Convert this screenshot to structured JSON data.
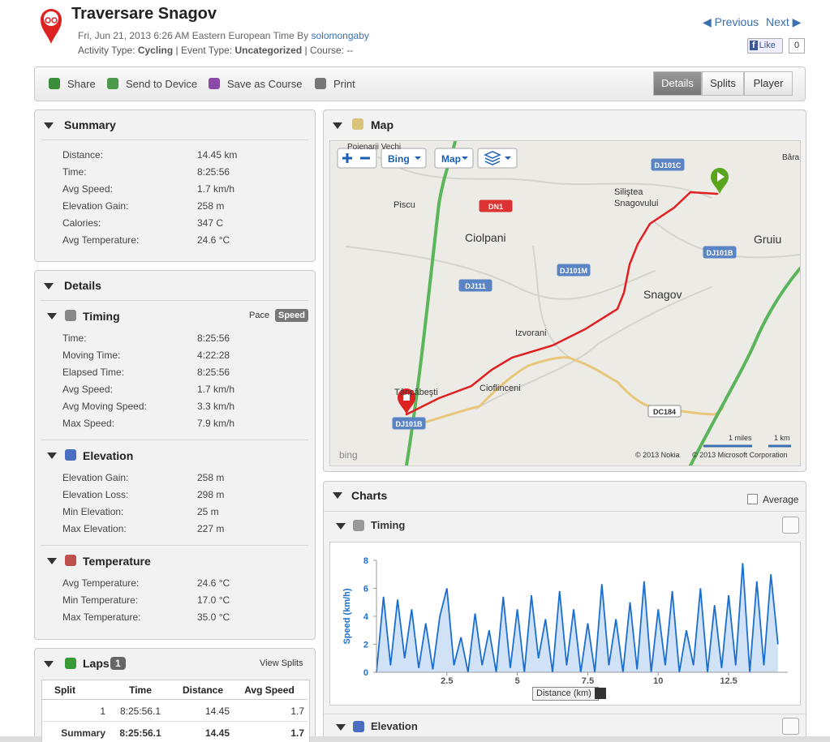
{
  "header": {
    "title": "Traversare Snagov",
    "date": "Fri, Jun 21, 2013 6:26 AM Eastern European Time By",
    "author": "solomongaby",
    "activity_type_label": "Activity Type:",
    "activity_type": "Cycling",
    "event_type_label": "| Event Type:",
    "event_type": "Uncategorized",
    "course_label": "| Course:",
    "course": "--",
    "previous": "Previous",
    "next": "Next",
    "like": "Like",
    "like_count": "0"
  },
  "toolbar": {
    "actions": [
      "Share",
      "Send to Device",
      "Save as Course",
      "Print"
    ],
    "tabs": [
      "Details",
      "Splits",
      "Player"
    ]
  },
  "summary": {
    "title": "Summary",
    "rows": [
      [
        "Distance:",
        "14.45 km"
      ],
      [
        "Time:",
        "8:25:56"
      ],
      [
        "Avg Speed:",
        "1.7 km/h"
      ],
      [
        "Elevation Gain:",
        "258 m"
      ],
      [
        "Calories:",
        "347 C"
      ],
      [
        "Avg Temperature:",
        "24.6 °C"
      ]
    ]
  },
  "details": {
    "title": "Details",
    "sections": [
      {
        "title": "Timing",
        "toggles": [
          "Pace",
          "Speed"
        ],
        "rows": [
          [
            "Time:",
            "8:25:56"
          ],
          [
            "Moving Time:",
            "4:22:28"
          ],
          [
            "Elapsed Time:",
            "8:25:56"
          ],
          [
            "Avg Speed:",
            "1.7 km/h"
          ],
          [
            "Avg Moving Speed:",
            "3.3 km/h"
          ],
          [
            "Max Speed:",
            "7.9 km/h"
          ]
        ]
      },
      {
        "title": "Elevation",
        "rows": [
          [
            "Elevation Gain:",
            "258 m"
          ],
          [
            "Elevation Loss:",
            "298 m"
          ],
          [
            "Min Elevation:",
            "25 m"
          ],
          [
            "Max Elevation:",
            "227 m"
          ]
        ]
      },
      {
        "title": "Temperature",
        "rows": [
          [
            "Avg Temperature:",
            "24.6 °C"
          ],
          [
            "Min Temperature:",
            "17.0 °C"
          ],
          [
            "Max Temperature:",
            "35.0 °C"
          ]
        ]
      }
    ]
  },
  "laps": {
    "title": "Laps",
    "count": "1",
    "view_splits": "View Splits",
    "headers": [
      "Split",
      "Time",
      "Distance",
      "Avg Speed"
    ],
    "rows": [
      [
        "1",
        "8:25:56.1",
        "14.45",
        "1.7"
      ],
      [
        "Summary",
        "8:25:56.1",
        "14.45",
        "1.7"
      ]
    ]
  },
  "map": {
    "title": "Map",
    "controls": [
      "Bing",
      "Map"
    ],
    "places": [
      "Poienarii Vechi",
      "Piscu",
      "Siliştea",
      "Snagovului",
      "Ciolpani",
      "Gruiu",
      "Snagov",
      "Izvorani",
      "Tâncăbeşti",
      "Cioflinceni",
      "Bâra"
    ],
    "roads": [
      "DN1",
      "DJ101C",
      "DJ101B",
      "DJ101M",
      "DJ111",
      "DJ101B",
      "DC184"
    ],
    "scale": [
      "1 miles",
      "1 km"
    ],
    "copyright": [
      "© 2013 Nokia",
      "© 2013 Microsoft Corporation"
    ],
    "logo": "bing"
  },
  "charts": {
    "title": "Charts",
    "average": "Average",
    "timing": "Timing",
    "elevation": "Elevation",
    "x_select": "Distance (km)"
  },
  "chart_data": {
    "type": "area",
    "y_label": "Speed (km/h)",
    "color": "#1a6fd0",
    "x": [
      0,
      0.25,
      0.5,
      0.75,
      1,
      1.25,
      1.5,
      1.75,
      2,
      2.25,
      2.5,
      2.75,
      3,
      3.25,
      3.5,
      3.75,
      4,
      4.25,
      4.5,
      4.75,
      5,
      5.25,
      5.5,
      5.75,
      6,
      6.25,
      6.5,
      6.75,
      7,
      7.25,
      7.5,
      7.75,
      8,
      8.25,
      8.5,
      8.75,
      9,
      9.25,
      9.5,
      9.75,
      10,
      10.25,
      10.5,
      10.75,
      11,
      11.25,
      11.5,
      11.75,
      12,
      12.25,
      12.5,
      12.75,
      13,
      13.25,
      13.5,
      13.75,
      14,
      14.25
    ],
    "values": [
      0,
      5.4,
      0.5,
      5.2,
      1,
      4.5,
      0.3,
      3.5,
      0.2,
      4,
      6,
      0.5,
      2.5,
      0,
      4.2,
      0.5,
      3,
      0,
      5.4,
      0.3,
      4.5,
      0,
      5.5,
      1,
      3.8,
      0,
      5.8,
      0.5,
      4.5,
      0,
      3.5,
      0,
      6.3,
      0.5,
      3.8,
      0,
      5,
      0.2,
      6.5,
      0,
      4.5,
      0.5,
      5.8,
      0,
      3,
      0.5,
      6,
      0,
      4.8,
      0.3,
      5.5,
      0.5,
      7.8,
      0,
      6.5,
      0.5,
      7,
      2
    ],
    "xlim": [
      0,
      14.6
    ],
    "ylim": [
      0,
      8
    ],
    "xticks": [
      2.5,
      5,
      7.5,
      10,
      12.5
    ],
    "yticks": [
      0,
      2,
      4,
      6,
      8
    ],
    "grid": false
  }
}
